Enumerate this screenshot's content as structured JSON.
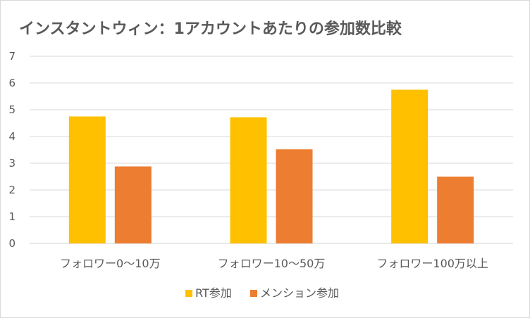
{
  "chart_data": {
    "type": "bar",
    "title": "インスタントウィン：1アカウントあたりの参加数比較",
    "categories": [
      "フォロワー0～10万",
      "フォロワー10～50万",
      "フォロワー100万以上"
    ],
    "series": [
      {
        "name": "RT参加",
        "values": [
          4.75,
          4.72,
          5.75
        ],
        "color": "#FFC000"
      },
      {
        "name": "メンション参加",
        "values": [
          2.88,
          3.52,
          2.5
        ],
        "color": "#ED7D31"
      }
    ],
    "ylim": [
      0,
      7
    ],
    "yticks": [
      0,
      1,
      2,
      3,
      4,
      5,
      6,
      7
    ],
    "grid": true,
    "legend_position": "bottom"
  }
}
